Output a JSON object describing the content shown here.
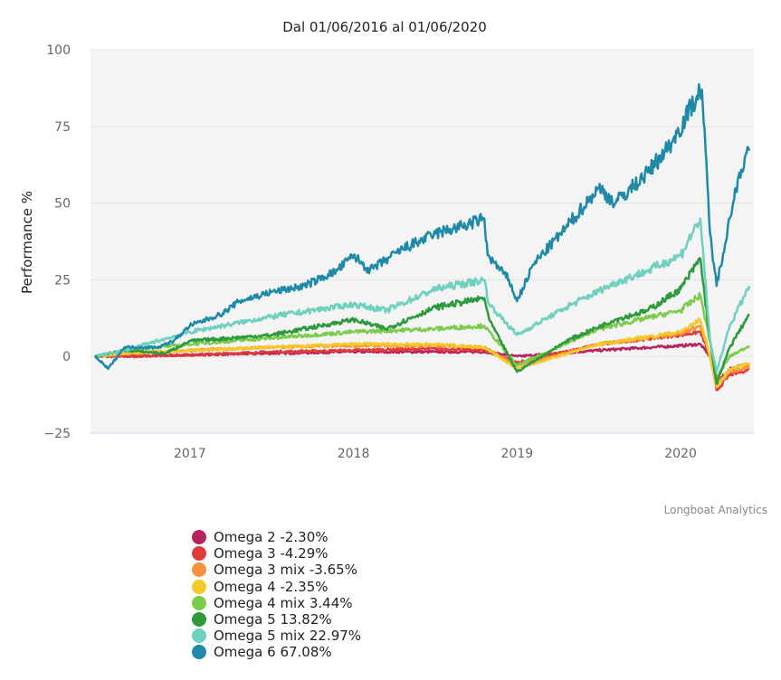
{
  "chart_data": {
    "type": "line",
    "title": "Dal 01/06/2016 al 01/06/2020",
    "ylabel": "Performance %",
    "xlabel": "",
    "ylim": [
      -25,
      100
    ],
    "xlim": [
      2016.42,
      2020.42
    ],
    "yticks": [
      "100",
      "75",
      "50",
      "25",
      "0",
      "−25"
    ],
    "ytick_values": [
      100,
      75,
      50,
      25,
      0,
      -25
    ],
    "xticks": [
      "2017",
      "2018",
      "2019",
      "2020"
    ],
    "xtick_values": [
      2017,
      2018,
      2019,
      2020
    ],
    "grid": true,
    "legend_position": "bottom-left",
    "credit": "Longboat Analytics",
    "series": [
      {
        "name": "Omega 2 -2.30%",
        "color": "#b5245e",
        "points": [
          [
            2016.42,
            0
          ],
          [
            2016.6,
            0
          ],
          [
            2017,
            0.5
          ],
          [
            2017.5,
            1
          ],
          [
            2018,
            1.5
          ],
          [
            2018.5,
            1.5
          ],
          [
            2018.8,
            1.5
          ],
          [
            2019,
            0
          ],
          [
            2019.5,
            2
          ],
          [
            2020,
            3.5
          ],
          [
            2020.12,
            4
          ],
          [
            2020.18,
            0
          ],
          [
            2020.22,
            -9
          ],
          [
            2020.3,
            -4
          ],
          [
            2020.42,
            -2.3
          ]
        ]
      },
      {
        "name": "Omega 3 -4.29%",
        "color": "#e03a3a",
        "points": [
          [
            2016.42,
            0
          ],
          [
            2016.6,
            0
          ],
          [
            2017,
            0.5
          ],
          [
            2017.5,
            1.5
          ],
          [
            2018,
            2
          ],
          [
            2018.5,
            2.5
          ],
          [
            2018.8,
            2
          ],
          [
            2019,
            -2
          ],
          [
            2019.5,
            4
          ],
          [
            2020,
            7
          ],
          [
            2020.12,
            8
          ],
          [
            2020.18,
            0
          ],
          [
            2020.22,
            -11
          ],
          [
            2020.3,
            -6
          ],
          [
            2020.42,
            -4.29
          ]
        ]
      },
      {
        "name": "Omega 3 mix -3.65%",
        "color": "#f7913d",
        "points": [
          [
            2016.42,
            0
          ],
          [
            2016.6,
            1
          ],
          [
            2017,
            2
          ],
          [
            2017.5,
            3
          ],
          [
            2018,
            3.5
          ],
          [
            2018.5,
            3.5
          ],
          [
            2018.8,
            3
          ],
          [
            2019,
            -3
          ],
          [
            2019.5,
            4
          ],
          [
            2020,
            7.5
          ],
          [
            2020.12,
            10
          ],
          [
            2020.18,
            0
          ],
          [
            2020.22,
            -10
          ],
          [
            2020.3,
            -5
          ],
          [
            2020.42,
            -3.65
          ]
        ]
      },
      {
        "name": "Omega 4 -2.35%",
        "color": "#f5c928",
        "points": [
          [
            2016.42,
            0
          ],
          [
            2016.6,
            1
          ],
          [
            2017,
            2
          ],
          [
            2017.5,
            3
          ],
          [
            2018,
            4
          ],
          [
            2018.5,
            4
          ],
          [
            2018.8,
            3
          ],
          [
            2019,
            -4
          ],
          [
            2019.5,
            4
          ],
          [
            2020,
            8
          ],
          [
            2020.12,
            12
          ],
          [
            2020.18,
            0
          ],
          [
            2020.22,
            -10
          ],
          [
            2020.3,
            -4
          ],
          [
            2020.42,
            -2.35
          ]
        ]
      },
      {
        "name": "Omega 4 mix 3.44%",
        "color": "#7ccc4c",
        "points": [
          [
            2016.42,
            0
          ],
          [
            2016.6,
            2
          ],
          [
            2017,
            4
          ],
          [
            2017.5,
            6
          ],
          [
            2018,
            8
          ],
          [
            2018.5,
            9
          ],
          [
            2018.8,
            10
          ],
          [
            2019,
            -3
          ],
          [
            2019.5,
            9
          ],
          [
            2020,
            15
          ],
          [
            2020.12,
            20
          ],
          [
            2020.18,
            5
          ],
          [
            2020.22,
            -7
          ],
          [
            2020.3,
            0
          ],
          [
            2020.42,
            3.44
          ]
        ]
      },
      {
        "name": "Omega 5 13.82%",
        "color": "#2e9a3e",
        "points": [
          [
            2016.42,
            0
          ],
          [
            2016.6,
            2
          ],
          [
            2016.85,
            1
          ],
          [
            2017,
            5
          ],
          [
            2017.5,
            7
          ],
          [
            2018,
            12
          ],
          [
            2018.2,
            9
          ],
          [
            2018.5,
            16
          ],
          [
            2018.8,
            19
          ],
          [
            2018.83,
            12
          ],
          [
            2019,
            -5
          ],
          [
            2019.3,
            5
          ],
          [
            2019.6,
            12
          ],
          [
            2019.8,
            15
          ],
          [
            2020,
            22
          ],
          [
            2020.12,
            32
          ],
          [
            2020.18,
            5
          ],
          [
            2020.22,
            -9
          ],
          [
            2020.3,
            3
          ],
          [
            2020.42,
            13.82
          ]
        ]
      },
      {
        "name": "Omega 5 mix 22.97%",
        "color": "#6fd0c0",
        "points": [
          [
            2016.42,
            0
          ],
          [
            2016.6,
            2
          ],
          [
            2017,
            8
          ],
          [
            2017.5,
            13
          ],
          [
            2018,
            17
          ],
          [
            2018.2,
            15
          ],
          [
            2018.5,
            22
          ],
          [
            2018.8,
            25
          ],
          [
            2018.83,
            17
          ],
          [
            2019,
            7
          ],
          [
            2019.3,
            16
          ],
          [
            2019.6,
            24
          ],
          [
            2019.8,
            28
          ],
          [
            2020,
            33
          ],
          [
            2020.12,
            45
          ],
          [
            2020.18,
            5
          ],
          [
            2020.22,
            -5
          ],
          [
            2020.3,
            10
          ],
          [
            2020.42,
            22.97
          ]
        ]
      },
      {
        "name": "Omega 6 67.08%",
        "color": "#1f8aa8",
        "points": [
          [
            2016.42,
            0
          ],
          [
            2016.5,
            -4
          ],
          [
            2016.6,
            3
          ],
          [
            2016.8,
            3
          ],
          [
            2016.9,
            5
          ],
          [
            2017,
            10
          ],
          [
            2017.2,
            14
          ],
          [
            2017.3,
            18
          ],
          [
            2017.5,
            21
          ],
          [
            2017.7,
            23
          ],
          [
            2017.9,
            28
          ],
          [
            2018,
            33
          ],
          [
            2018.1,
            28
          ],
          [
            2018.3,
            35
          ],
          [
            2018.5,
            40
          ],
          [
            2018.7,
            43
          ],
          [
            2018.8,
            45
          ],
          [
            2018.82,
            33
          ],
          [
            2018.95,
            25
          ],
          [
            2019,
            18
          ],
          [
            2019.1,
            30
          ],
          [
            2019.3,
            42
          ],
          [
            2019.5,
            55
          ],
          [
            2019.6,
            50
          ],
          [
            2019.8,
            60
          ],
          [
            2019.95,
            70
          ],
          [
            2020.1,
            85
          ],
          [
            2020.13,
            87
          ],
          [
            2020.18,
            40
          ],
          [
            2020.22,
            23
          ],
          [
            2020.3,
            45
          ],
          [
            2020.36,
            60
          ],
          [
            2020.42,
            67.08
          ]
        ]
      }
    ]
  }
}
